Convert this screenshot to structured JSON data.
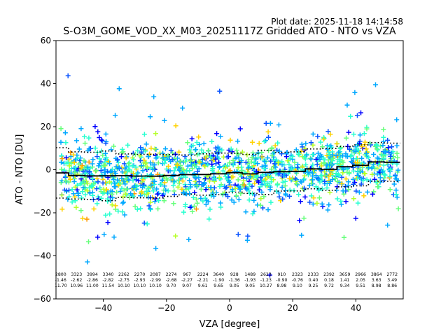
{
  "plot_date": "Plot date: 2025-11-18 14:14:58",
  "chart_data": {
    "type": "scatter",
    "title": "S-O3M_GOME_VOD_XX_M03_20251117Z Gridded ATO - NTO vs VZA",
    "xlabel": "VZA [degree]",
    "ylabel": "ATO - NTO [DU]",
    "xlim": [
      -55,
      55
    ],
    "ylim": [
      -60,
      60
    ],
    "xticks": [
      -40,
      -20,
      0,
      20,
      40
    ],
    "yticks": [
      -60,
      -40,
      -20,
      0,
      20,
      40,
      60
    ],
    "grid": false,
    "scatter_colors": [
      "#0000ff",
      "#0a54ff",
      "#00a8ff",
      "#27ffd0",
      "#66ff7a",
      "#b6ff2a",
      "#ffd200",
      "#ff9a00"
    ],
    "series": [
      {
        "name": "bin mean",
        "style": "solid-step",
        "color": "#000000",
        "x": [
          -53.5,
          -48.5,
          -43.5,
          -38.5,
          -33.5,
          -28.5,
          -23.5,
          -18.5,
          -13.5,
          -8.5,
          -3.5,
          1.5,
          6.5,
          11.5,
          16.5,
          21.5,
          26.5,
          31.5,
          36.5,
          41.5,
          46.5,
          51.5
        ],
        "values": [
          -1.46,
          -2.62,
          -2.86,
          -2.82,
          -2.75,
          -2.93,
          -2.99,
          -2.68,
          -2.27,
          -2.21,
          -1.9,
          -1.36,
          -1.93,
          -1.23,
          -0.9,
          -0.76,
          0.4,
          0.18,
          1.41,
          2.05,
          3.63,
          3.49
        ]
      },
      {
        "name": "mean + std",
        "style": "dotted-step",
        "color": "#000000",
        "x": [
          -53.5,
          -48.5,
          -43.5,
          -38.5,
          -33.5,
          -28.5,
          -23.5,
          -18.5,
          -13.5,
          -8.5,
          -3.5,
          1.5,
          6.5,
          11.5,
          16.5,
          21.5,
          26.5,
          31.5,
          36.5,
          41.5,
          46.5,
          51.5
        ],
        "values": [
          10.24,
          8.34,
          8.14,
          8.72,
          7.35,
          7.17,
          7.11,
          7.02,
          6.8,
          7.4,
          7.75,
          7.69,
          7.12,
          9.04,
          8.08,
          8.34,
          9.65,
          9.9,
          10.75,
          11.56,
          12.61,
          12.35
        ]
      },
      {
        "name": "mean - std",
        "style": "dotted-step",
        "color": "#000000",
        "x": [
          -53.5,
          -48.5,
          -43.5,
          -38.5,
          -33.5,
          -28.5,
          -23.5,
          -18.5,
          -13.5,
          -8.5,
          -3.5,
          1.5,
          6.5,
          11.5,
          16.5,
          21.5,
          26.5,
          31.5,
          36.5,
          41.5,
          46.5,
          51.5
        ],
        "values": [
          -13.16,
          -13.58,
          -13.86,
          -14.36,
          -12.85,
          -13.03,
          -13.09,
          -12.38,
          -11.34,
          -11.82,
          -11.55,
          -10.41,
          -10.98,
          -11.5,
          -9.88,
          -9.86,
          -8.85,
          -9.54,
          -7.93,
          -7.46,
          -5.35,
          -5.37
        ]
      }
    ],
    "annotations": {
      "x": [
        -53.5,
        -48.5,
        -43.5,
        -38.5,
        -33.5,
        -28.5,
        -23.5,
        -18.5,
        -13.5,
        -8.5,
        -3.5,
        1.5,
        6.5,
        11.5,
        16.5,
        21.5,
        26.5,
        31.5,
        36.5,
        41.5,
        46.5,
        51.5
      ],
      "counts": [
        "2800",
        "3323",
        "3994",
        "3340",
        "2262",
        "2270",
        "2087",
        "2274",
        "967",
        "2224",
        "3640",
        "928",
        "1489",
        "2623",
        "910",
        "2323",
        "2333",
        "2392",
        "3659",
        "2966",
        "3864",
        "2772"
      ],
      "means": [
        "-1.46",
        "-2.62",
        "-2.86",
        "-2.82",
        "-2.75",
        "-2.93",
        "-2.99",
        "-2.68",
        "-2.27",
        "-2.21",
        "-1.90",
        "-1.36",
        "-1.93",
        "-1.23",
        "-0.90",
        "-0.76",
        "0.40",
        "0.18",
        "1.41",
        "2.05",
        "3.63",
        "3.49"
      ],
      "stds": [
        "11.70",
        "10.96",
        "11.00",
        "11.54",
        "10.10",
        "10.10",
        "10.10",
        "9.70",
        "9.07",
        "9.61",
        "9.65",
        "9.05",
        "9.05",
        "10.27",
        "8.98",
        "9.10",
        "9.25",
        "9.72",
        "9.34",
        "9.51",
        "8.98",
        "8.86"
      ]
    }
  }
}
